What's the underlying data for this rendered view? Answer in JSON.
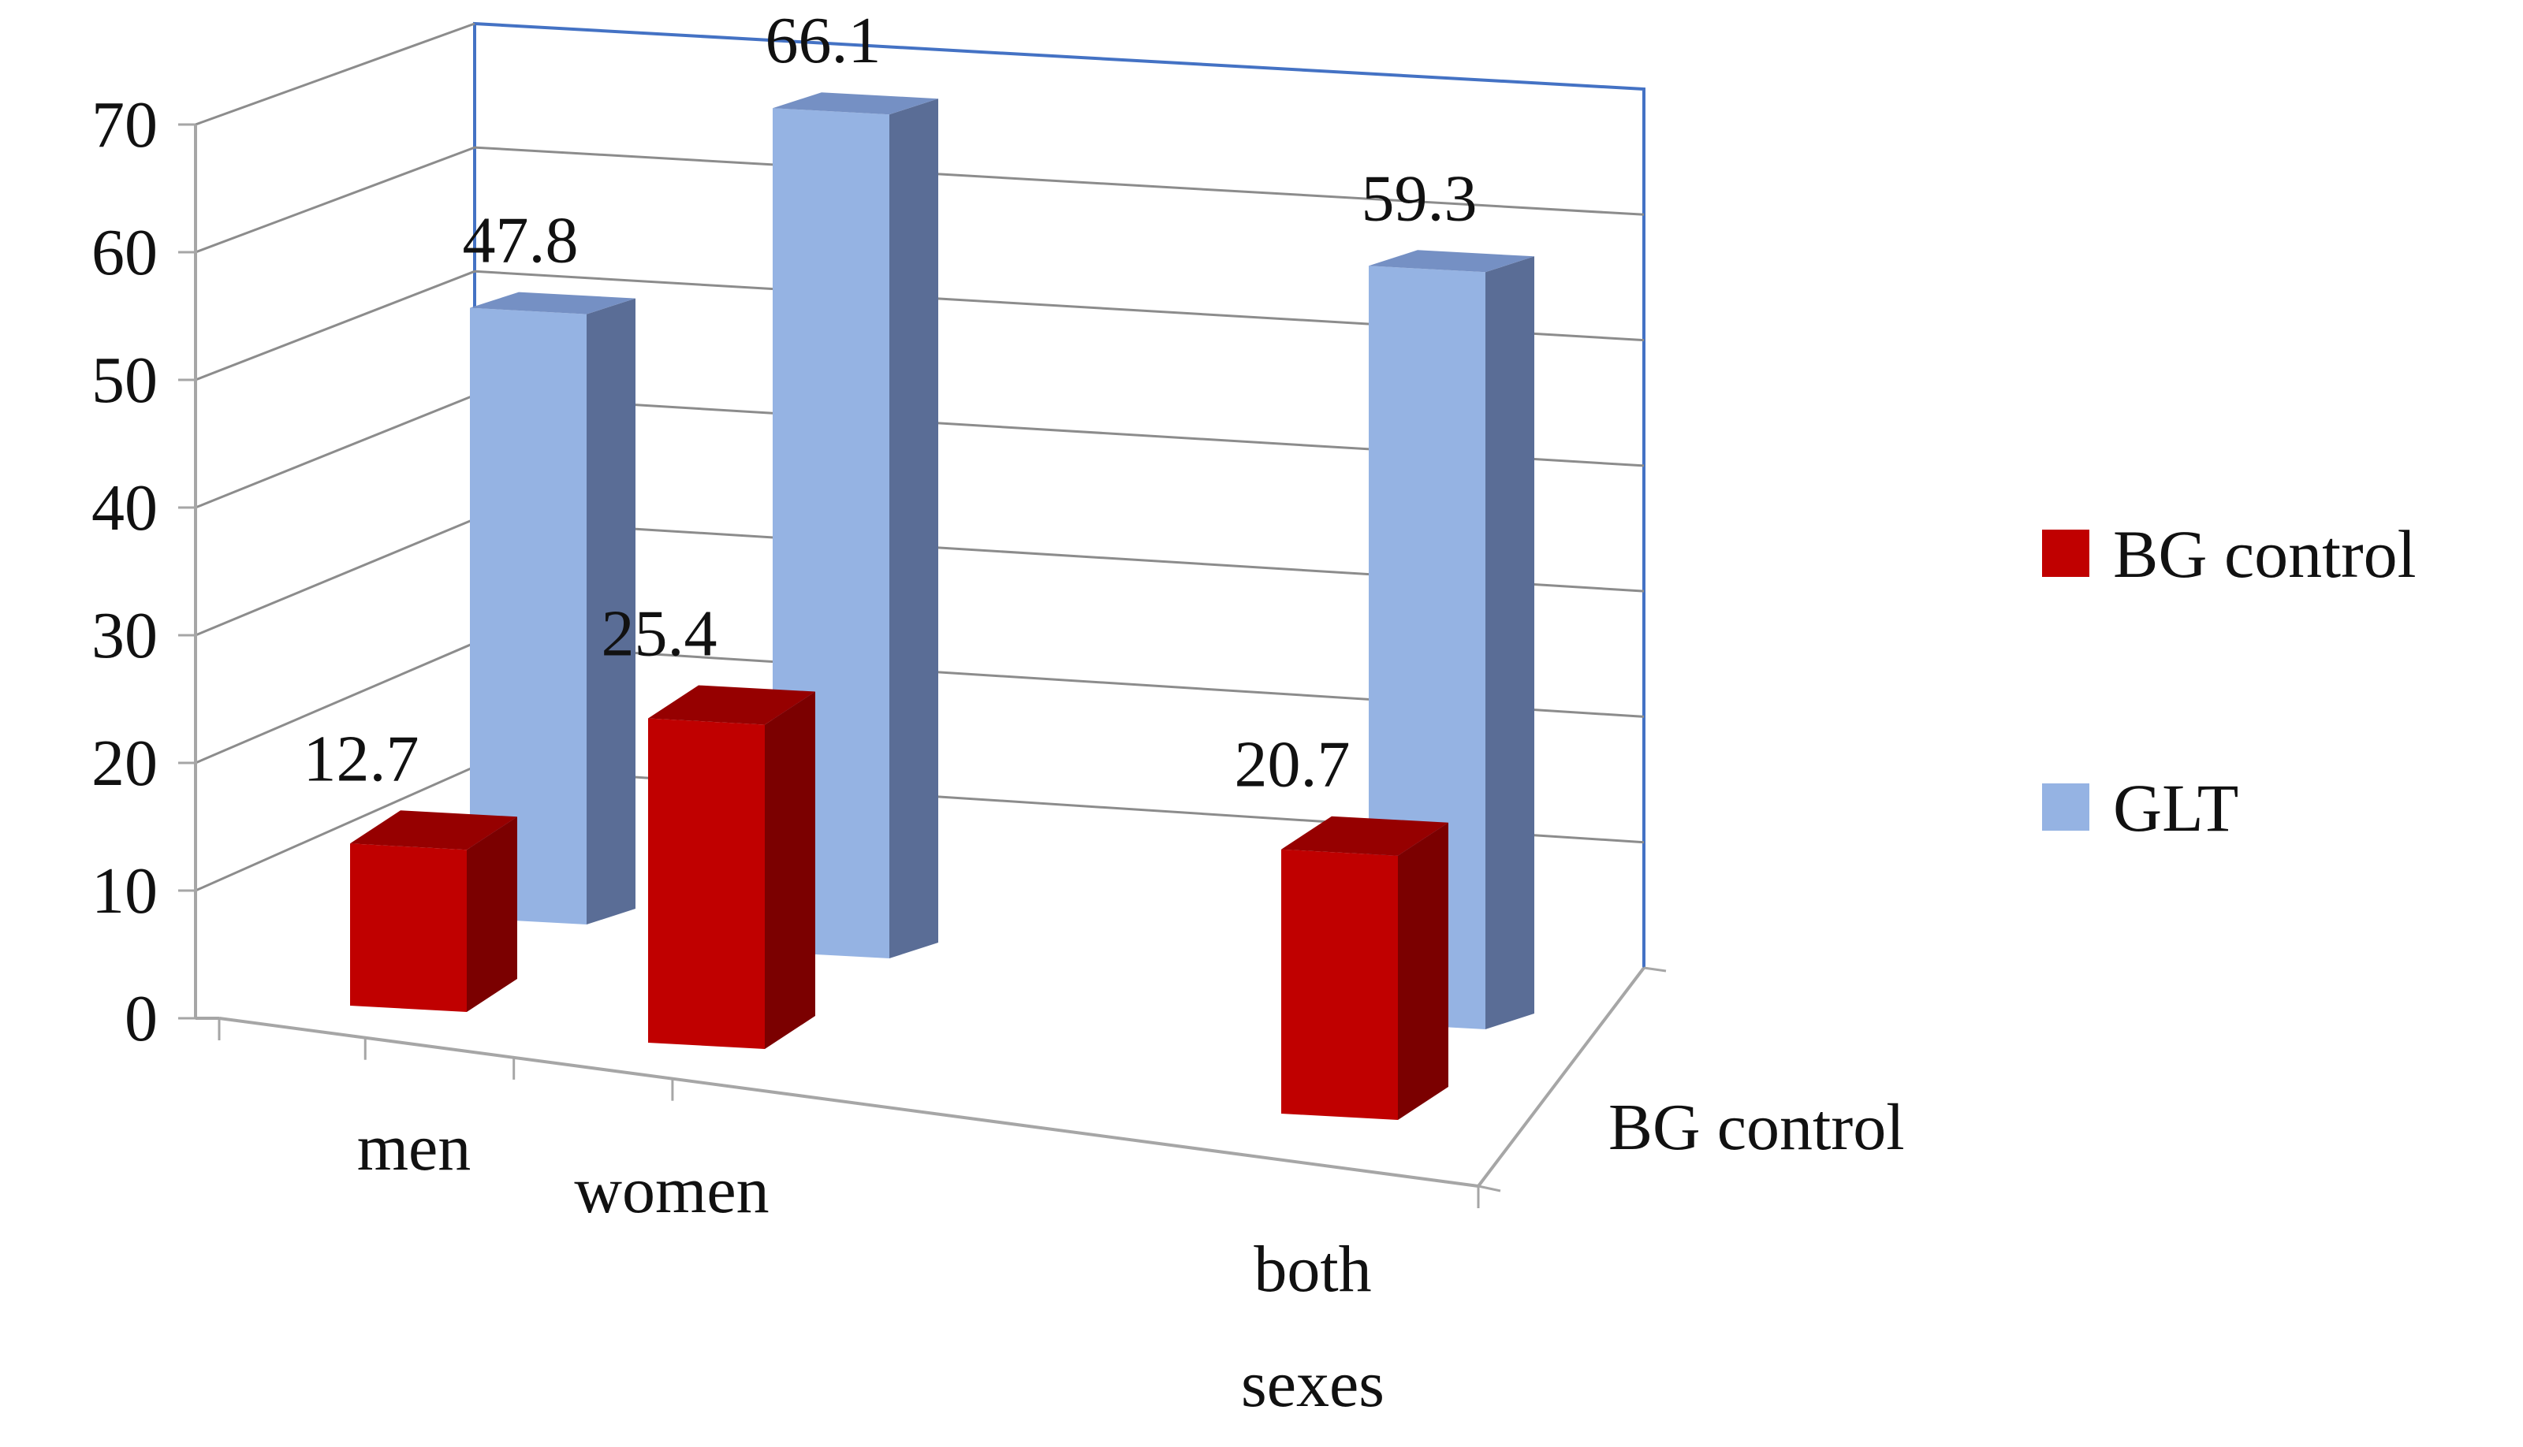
{
  "chart_data": {
    "type": "bar",
    "projection": "3d",
    "categories": [
      {
        "lines": [
          "men"
        ]
      },
      {
        "lines": [
          "women"
        ]
      },
      {
        "lines": [
          "both",
          "sexes"
        ]
      }
    ],
    "series": [
      {
        "name": "BG control",
        "values": [
          12.7,
          25.4,
          20.7
        ],
        "color": "#c00000",
        "side_color": "#7b0000",
        "top_color": "#960000"
      },
      {
        "name": "GLT",
        "values": [
          47.8,
          66.1,
          59.3
        ],
        "color": "#95b3e3",
        "side_color": "#5a6d96",
        "top_color": "#7590c4"
      }
    ],
    "ylim": [
      0,
      70
    ],
    "y_ticks": [
      "0",
      "10",
      "20",
      "30",
      "40",
      "50",
      "60",
      "70"
    ],
    "depth_label": "BG control",
    "grid": true,
    "legend_position": "right",
    "colors": {
      "back_wall_border": "#4472c4",
      "gridline": "#8c8c8c",
      "axis": "#a6a6a6"
    }
  }
}
